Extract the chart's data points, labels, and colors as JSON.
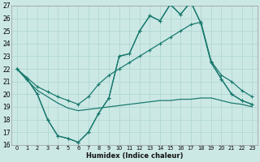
{
  "xlabel": "Humidex (Indice chaleur)",
  "x": [
    0,
    1,
    2,
    3,
    4,
    5,
    6,
    7,
    8,
    9,
    10,
    11,
    12,
    13,
    14,
    15,
    16,
    17,
    18,
    19,
    20,
    21,
    22,
    23
  ],
  "line_top": [
    22,
    21.2,
    20.0,
    18.0,
    16.7,
    16.5,
    16.2,
    17.0,
    18.5,
    19.7,
    23.0,
    23.2,
    25.0,
    26.2,
    25.8,
    27.1,
    26.3,
    27.3,
    25.6,
    22.5,
    21.2,
    20.0,
    19.5,
    19.2
  ],
  "line_upper_env": [
    22,
    21.3,
    20.6,
    20.2,
    19.8,
    19.5,
    19.2,
    19.8,
    20.8,
    21.5,
    22.0,
    22.5,
    23.0,
    23.5,
    24.0,
    24.5,
    25.0,
    25.5,
    25.7,
    22.6,
    21.5,
    21.0,
    20.3,
    19.8
  ],
  "line_lower_env": [
    22,
    21.1,
    20.3,
    19.8,
    19.3,
    18.9,
    18.7,
    18.8,
    18.9,
    19.0,
    19.1,
    19.2,
    19.3,
    19.4,
    19.5,
    19.5,
    19.6,
    19.6,
    19.7,
    19.7,
    19.5,
    19.3,
    19.2,
    19.0
  ],
  "line_bot": [
    22,
    21.2,
    20.0,
    18.0,
    16.7,
    16.5,
    16.2,
    17.0,
    18.5,
    19.7,
    23.0,
    23.2,
    25.0,
    26.2,
    25.8,
    27.1,
    26.3,
    27.3,
    25.6,
    22.5,
    21.2,
    20.0,
    19.5,
    19.2
  ],
  "color": "#1a7a6e",
  "bg_color": "#cce8e5",
  "grid_color": "#aad4d0",
  "ylim": [
    16,
    27
  ],
  "xlim": [
    -0.5,
    23.5
  ]
}
